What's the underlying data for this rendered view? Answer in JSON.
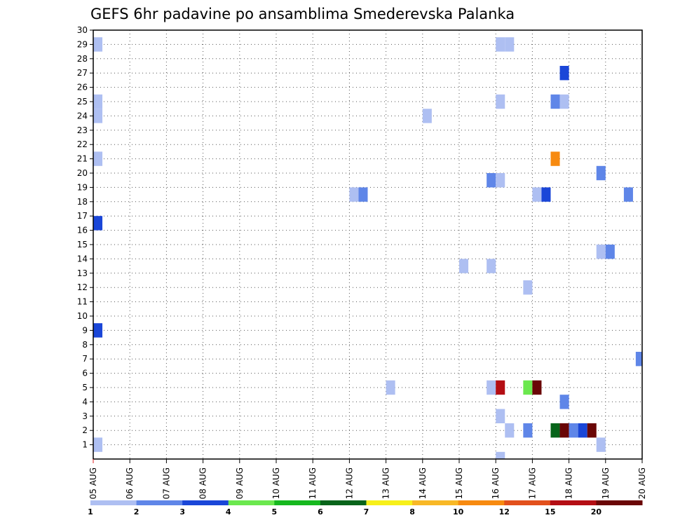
{
  "chart_data": {
    "type": "heatmap",
    "title": "GEFS 6hr padavine po ansamblima Smederevska Palanka",
    "xlabel": "",
    "ylabel": "",
    "x_tick_labels": [
      "05 AUG",
      "06 AUG",
      "07 AUG",
      "08 AUG",
      "09 AUG",
      "10 AUG",
      "11 AUG",
      "12 AUG",
      "13 AUG",
      "14 AUG",
      "15 AUG",
      "16 AUG",
      "17 AUG",
      "18 AUG",
      "19 AUG",
      "20 AUG"
    ],
    "y_tick_labels": [
      "1",
      "2",
      "3",
      "4",
      "5",
      "6",
      "7",
      "8",
      "9",
      "10",
      "11",
      "12",
      "13",
      "14",
      "15",
      "16",
      "17",
      "18",
      "19",
      "20",
      "21",
      "22",
      "23",
      "24",
      "25",
      "26",
      "27",
      "28",
      "29",
      "30"
    ],
    "xlim": [
      0,
      60
    ],
    "ylim": [
      0,
      30
    ],
    "x_unit_note": "6-hour steps from 05 AUG",
    "grid": true,
    "colorbar": {
      "labels": [
        "1",
        "2",
        "3",
        "4",
        "5",
        "6",
        "7",
        "8",
        "10",
        "12",
        "15",
        "20"
      ],
      "colors": [
        "#aebff2",
        "#5f86e8",
        "#1a46d8",
        "#6be84e",
        "#16b81e",
        "#07641a",
        "#f7f01a",
        "#f8b826",
        "#f78a10",
        "#e2501c",
        "#b40e14",
        "#6a0606"
      ]
    },
    "cells": [
      {
        "x": 0.5,
        "y": 29,
        "c": 1
      },
      {
        "x": 0.5,
        "y": 25,
        "c": 1
      },
      {
        "x": 0.5,
        "y": 24,
        "c": 1
      },
      {
        "x": 0.5,
        "y": 21,
        "c": 1
      },
      {
        "x": 0.5,
        "y": 16.5,
        "c": 3
      },
      {
        "x": 0.5,
        "y": 9,
        "c": 3
      },
      {
        "x": 0.5,
        "y": 1,
        "c": 1
      },
      {
        "x": 28.5,
        "y": 18.5,
        "c": 1
      },
      {
        "x": 29.5,
        "y": 18.5,
        "c": 2
      },
      {
        "x": 32.5,
        "y": 5,
        "c": 1
      },
      {
        "x": 36.5,
        "y": 24,
        "c": 1
      },
      {
        "x": 40.5,
        "y": 13.5,
        "c": 1
      },
      {
        "x": 43.5,
        "y": 19.5,
        "c": 2
      },
      {
        "x": 44.5,
        "y": 19.5,
        "c": 1
      },
      {
        "x": 43.5,
        "y": 13.5,
        "c": 1
      },
      {
        "x": 44.5,
        "y": 29,
        "c": 1
      },
      {
        "x": 45.5,
        "y": 29,
        "c": 1
      },
      {
        "x": 44.5,
        "y": 25,
        "c": 1
      },
      {
        "x": 43.5,
        "y": 5,
        "c": 1
      },
      {
        "x": 44.5,
        "y": 5,
        "c": 11
      },
      {
        "x": 44.5,
        "y": 3,
        "c": 1
      },
      {
        "x": 45.5,
        "y": 2,
        "c": 1
      },
      {
        "x": 44.5,
        "y": 0,
        "c": 1
      },
      {
        "x": 47.5,
        "y": 12,
        "c": 1
      },
      {
        "x": 47.5,
        "y": 2,
        "c": 2
      },
      {
        "x": 47.5,
        "y": 5,
        "c": 4
      },
      {
        "x": 48.5,
        "y": 5,
        "c": 12
      },
      {
        "x": 48.5,
        "y": 18.5,
        "c": 1
      },
      {
        "x": 49.5,
        "y": 18.5,
        "c": 3
      },
      {
        "x": 50.5,
        "y": 25,
        "c": 2
      },
      {
        "x": 51.5,
        "y": 25,
        "c": 1
      },
      {
        "x": 50.5,
        "y": 21,
        "c": 9
      },
      {
        "x": 51.5,
        "y": 27,
        "c": 3
      },
      {
        "x": 51.5,
        "y": 4,
        "c": 2
      },
      {
        "x": 50.5,
        "y": 2,
        "c": 6
      },
      {
        "x": 51.5,
        "y": 2,
        "c": 12
      },
      {
        "x": 52.5,
        "y": 2,
        "c": 2
      },
      {
        "x": 53.5,
        "y": 2,
        "c": 3
      },
      {
        "x": 54.5,
        "y": 2,
        "c": 12
      },
      {
        "x": 55.5,
        "y": 20,
        "c": 2
      },
      {
        "x": 55.5,
        "y": 14.5,
        "c": 1
      },
      {
        "x": 56.5,
        "y": 14.5,
        "c": 2
      },
      {
        "x": 55.5,
        "y": 1,
        "c": 1
      },
      {
        "x": 58.5,
        "y": 18.5,
        "c": 2
      },
      {
        "x": 59.8,
        "y": 7,
        "c": 2
      }
    ]
  }
}
